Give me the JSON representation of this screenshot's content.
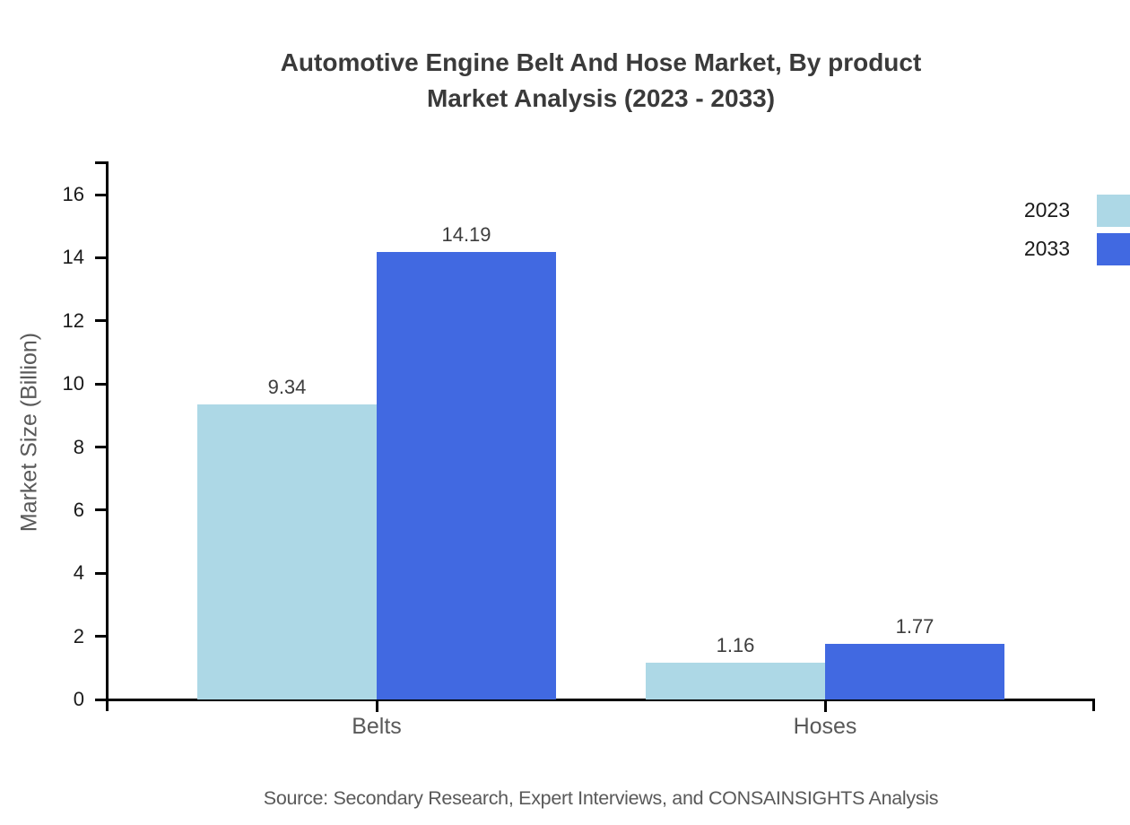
{
  "title": {
    "line1": "Automotive Engine Belt And Hose Market, By product",
    "line2": "Market Analysis (2023 - 2033)"
  },
  "source": "Source: Secondary Research, Expert Interviews, and CONSAINSIGHTS Analysis",
  "colors": {
    "series_2023": "#ADD8E6",
    "series_2033": "#4169E1",
    "axis": "#000000",
    "title_text": "#3a3a3a",
    "tick_label_text": "#1a1a1a",
    "category_label_text": "#595959",
    "value_label_text": "#3d3d3d"
  },
  "chart_data": {
    "type": "bar",
    "title": "Automotive Engine Belt And Hose Market, By product Market Analysis (2023 - 2033)",
    "title_lines": [
      "Automotive Engine Belt And Hose Market, By product",
      "Market Analysis (2023 - 2033)"
    ],
    "categories": [
      "Belts",
      "Hoses"
    ],
    "series": [
      {
        "name": "2023",
        "color": "#ADD8E6",
        "values": [
          9.34,
          1.16
        ]
      },
      {
        "name": "2033",
        "color": "#4169E1",
        "values": [
          14.19,
          1.77
        ]
      }
    ],
    "value_labels": [
      [
        "9.34",
        "1.16"
      ],
      [
        "14.19",
        "1.77"
      ]
    ],
    "xlabel": "",
    "ylabel": "Market Size (Billion)",
    "ylim": [
      0,
      17
    ],
    "yticks": [
      0,
      2,
      4,
      6,
      8,
      10,
      12,
      14,
      16
    ],
    "grid": false,
    "legend_position": "top-right",
    "source": "Source: Secondary Research, Expert Interviews, and CONSAINSIGHTS Analysis"
  }
}
